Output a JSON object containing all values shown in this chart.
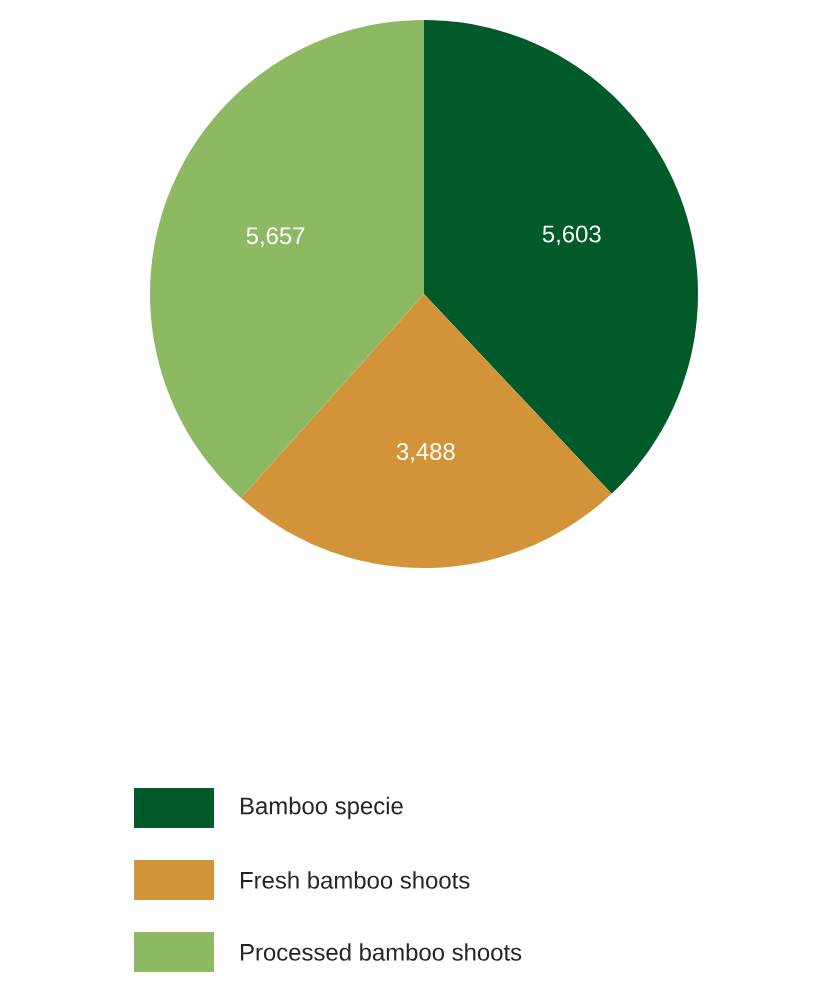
{
  "chart_data": {
    "type": "pie",
    "categories": [
      "Bamboo specie",
      "Fresh bamboo shoots",
      "Processed bamboo shoots"
    ],
    "values": [
      5603,
      3488,
      5657
    ],
    "value_labels": [
      "5,603",
      "3,488",
      "5,657"
    ],
    "colors": [
      "#005a2a",
      "#d39439",
      "#8db962"
    ],
    "legend": "bottom"
  }
}
